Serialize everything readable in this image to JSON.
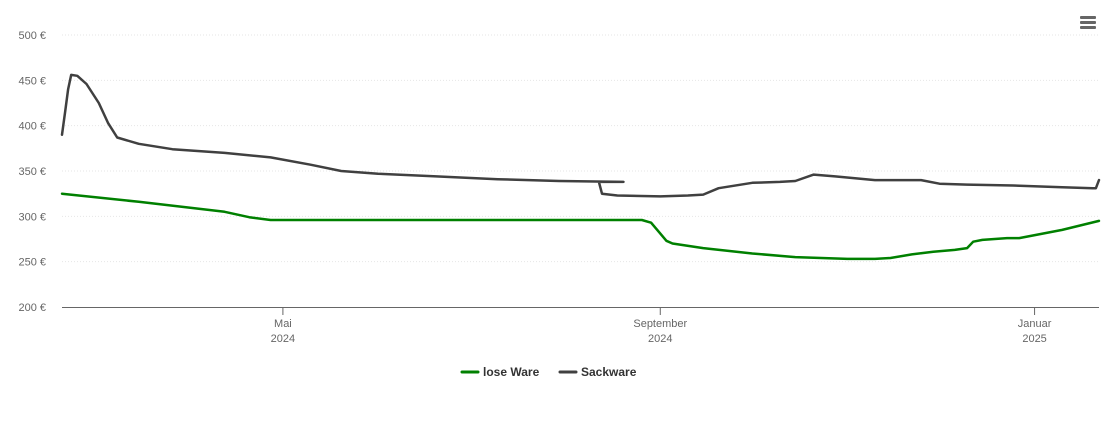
{
  "chart_data": {
    "type": "line",
    "currency_suffix": " €",
    "ylim": [
      200,
      500
    ],
    "y_ticks": [
      200,
      250,
      300,
      350,
      400,
      450,
      500
    ],
    "x_range": [
      "2024-02-19",
      "2025-01-22"
    ],
    "x_ticks": [
      {
        "date": "2024-05-01",
        "label_month": "Mai",
        "label_year": "2024"
      },
      {
        "date": "2024-09-01",
        "label_month": "September",
        "label_year": "2024"
      },
      {
        "date": "2025-01-01",
        "label_month": "Januar",
        "label_year": "2025"
      }
    ],
    "grid": true,
    "legend_position": "bottom-center",
    "series": [
      {
        "name": "lose Ware",
        "color": "#008000",
        "points": [
          [
            "2024-02-19",
            325
          ],
          [
            "2024-03-15",
            316
          ],
          [
            "2024-04-12",
            305
          ],
          [
            "2024-04-20",
            299
          ],
          [
            "2024-04-27",
            296
          ],
          [
            "2024-05-15",
            296
          ],
          [
            "2024-06-15",
            296
          ],
          [
            "2024-07-15",
            296
          ],
          [
            "2024-08-15",
            296
          ],
          [
            "2024-08-26",
            296
          ],
          [
            "2024-08-29",
            293
          ],
          [
            "2024-09-01",
            281
          ],
          [
            "2024-09-03",
            273
          ],
          [
            "2024-09-05",
            270
          ],
          [
            "2024-09-15",
            265
          ],
          [
            "2024-10-01",
            259
          ],
          [
            "2024-10-15",
            255
          ],
          [
            "2024-11-01",
            253
          ],
          [
            "2024-11-10",
            253
          ],
          [
            "2024-11-15",
            254
          ],
          [
            "2024-11-22",
            258
          ],
          [
            "2024-11-29",
            261
          ],
          [
            "2024-12-06",
            263
          ],
          [
            "2024-12-10",
            265
          ],
          [
            "2024-12-12",
            272
          ],
          [
            "2024-12-15",
            274
          ],
          [
            "2024-12-23",
            276
          ],
          [
            "2024-12-27",
            276
          ],
          [
            "2025-01-10",
            285
          ],
          [
            "2025-01-22",
            295
          ]
        ]
      },
      {
        "name": "Sackware",
        "color": "#404040",
        "points": [
          [
            "2024-02-19",
            390
          ],
          [
            "2024-02-20",
            415
          ],
          [
            "2024-02-21",
            440
          ],
          [
            "2024-02-22",
            456
          ],
          [
            "2024-02-24",
            455
          ],
          [
            "2024-02-27",
            446
          ],
          [
            "2024-03-02",
            425
          ],
          [
            "2024-03-05",
            403
          ],
          [
            "2024-03-08",
            387
          ],
          [
            "2024-03-15",
            380
          ],
          [
            "2024-03-26",
            374
          ],
          [
            "2024-04-12",
            370
          ],
          [
            "2024-04-27",
            365
          ],
          [
            "2024-05-10",
            357
          ],
          [
            "2024-05-20",
            350
          ],
          [
            "2024-06-01",
            347
          ],
          [
            "2024-06-20",
            344
          ],
          [
            "2024-07-10",
            341
          ],
          [
            "2024-07-30",
            339
          ],
          [
            "2024-08-20",
            338
          ],
          [
            "2024-08-12",
            338
          ],
          [
            "2024-08-13",
            325
          ],
          [
            "2024-08-18",
            323
          ],
          [
            "2024-09-01",
            322
          ],
          [
            "2024-09-10",
            323
          ],
          [
            "2024-09-15",
            324
          ],
          [
            "2024-09-20",
            331
          ],
          [
            "2024-10-01",
            337
          ],
          [
            "2024-10-10",
            338
          ],
          [
            "2024-10-15",
            339
          ],
          [
            "2024-10-21",
            346
          ],
          [
            "2024-10-28",
            344
          ],
          [
            "2024-11-10",
            340
          ],
          [
            "2024-11-25",
            340
          ],
          [
            "2024-12-01",
            336
          ],
          [
            "2024-12-10",
            335
          ],
          [
            "2024-12-25",
            334
          ],
          [
            "2025-01-10",
            332
          ],
          [
            "2025-01-20",
            331
          ],
          [
            "2025-01-21",
            331
          ],
          [
            "2025-01-22",
            340
          ]
        ]
      }
    ]
  },
  "menu": {
    "icon": "hamburger-menu-icon"
  }
}
